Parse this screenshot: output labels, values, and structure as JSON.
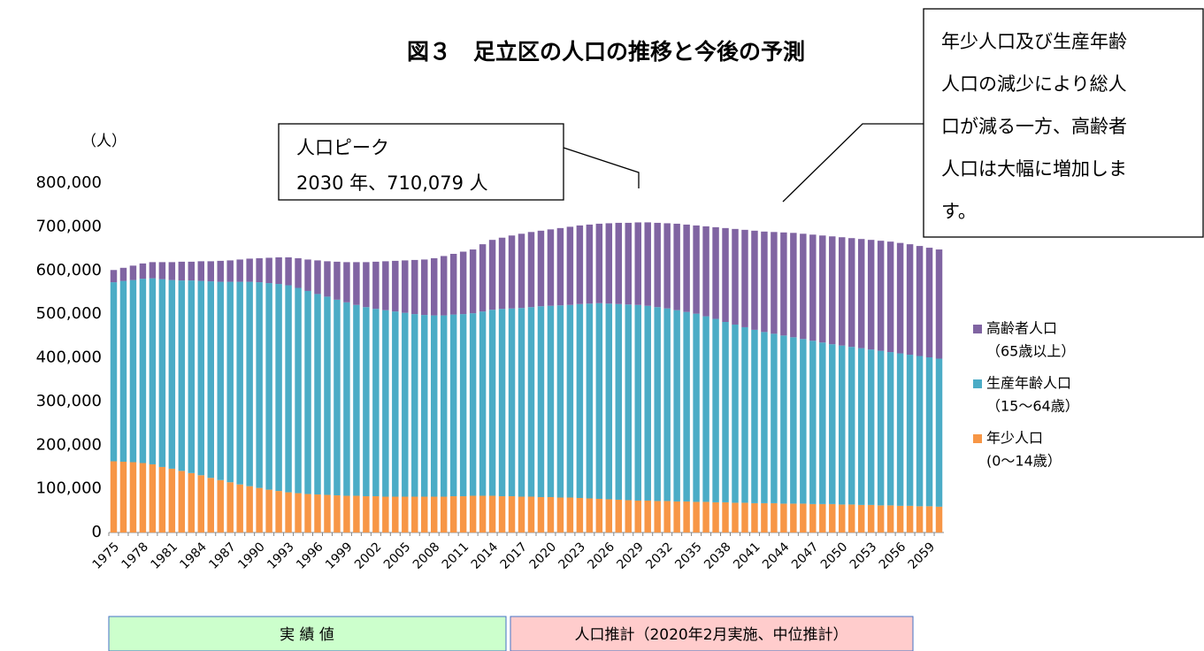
{
  "chart_data": {
    "type": "stacked_bar",
    "title": "図３　足立区の人口の推移と今後の予測",
    "y_unit": "（人）",
    "categories": [
      "1975",
      null,
      null,
      "1978",
      null,
      null,
      "1981",
      null,
      null,
      "1984",
      null,
      null,
      "1987",
      null,
      null,
      "1990",
      null,
      null,
      "1993",
      null,
      null,
      "1996",
      null,
      null,
      "1999",
      null,
      null,
      "2002",
      null,
      null,
      "2005",
      null,
      null,
      "2008",
      null,
      null,
      "2011",
      null,
      null,
      "2014",
      null,
      null,
      "2017",
      null,
      null,
      "2020",
      null,
      null,
      "2023",
      null,
      null,
      "2026",
      null,
      null,
      "2029",
      null,
      null,
      "2032",
      null,
      null,
      "2035",
      null,
      null,
      "2038",
      null,
      null,
      "2041",
      null,
      null,
      "2044",
      null,
      null,
      "2047",
      null,
      null,
      "2050",
      null,
      null,
      "2053",
      null,
      null,
      "2056",
      null,
      null,
      "2059",
      null
    ],
    "series": [
      {
        "name": "年少人口",
        "age_range": "(0～14歳）",
        "color": "#f79646",
        "values": [
          163000,
          162000,
          161000,
          159000,
          156000,
          150000,
          146000,
          141000,
          136000,
          131000,
          125000,
          120000,
          115000,
          110000,
          106000,
          102000,
          98000,
          95000,
          92000,
          90000,
          88000,
          87000,
          86000,
          85000,
          84000,
          84000,
          83000,
          83000,
          82000,
          82000,
          82000,
          82000,
          82000,
          82000,
          82000,
          83000,
          83000,
          84000,
          84000,
          84000,
          83000,
          83000,
          82000,
          82000,
          81000,
          81000,
          80000,
          80000,
          79000,
          78000,
          77000,
          76000,
          75000,
          74000,
          73000,
          73000,
          72000,
          72000,
          71000,
          71000,
          70000,
          70000,
          69000,
          69000,
          68000,
          68000,
          67000,
          67000,
          67000,
          66000,
          66000,
          66000,
          65000,
          65000,
          65000,
          64000,
          64000,
          63000,
          63000,
          62000,
          62000,
          61000,
          61000,
          60000,
          60000,
          59000
        ]
      },
      {
        "name": "生産年齢人口",
        "age_range": "（15～64歳）",
        "color": "#4bacc6",
        "values": [
          410000,
          414000,
          417000,
          422000,
          426000,
          430000,
          432000,
          436000,
          441000,
          445000,
          450000,
          454000,
          459000,
          464000,
          468000,
          471000,
          473000,
          474000,
          474000,
          470000,
          465000,
          459000,
          454000,
          448000,
          443000,
          437000,
          433000,
          429000,
          427000,
          424000,
          421000,
          418000,
          416000,
          415000,
          415000,
          416000,
          417000,
          418000,
          422000,
          426000,
          429000,
          430000,
          432000,
          434000,
          437000,
          438000,
          440000,
          441000,
          444000,
          446000,
          448000,
          448000,
          448000,
          448000,
          448000,
          446000,
          444000,
          441000,
          438000,
          434000,
          431000,
          425000,
          420000,
          413000,
          408000,
          402000,
          397000,
          392000,
          388000,
          385000,
          381000,
          377000,
          374000,
          370000,
          366000,
          364000,
          361000,
          359000,
          356000,
          354000,
          351000,
          349000,
          346000,
          344000,
          341000,
          339000
        ]
      },
      {
        "name": "高齢者人口",
        "age_range": "（65歳以上）",
        "color": "#8064a2",
        "values": [
          28000,
          30000,
          33000,
          35000,
          37000,
          39000,
          41000,
          43000,
          43000,
          45000,
          46000,
          48000,
          49000,
          51000,
          53000,
          55000,
          58000,
          61000,
          64000,
          68000,
          72000,
          77000,
          81000,
          87000,
          92000,
          98000,
          103000,
          108000,
          112000,
          116000,
          120000,
          124000,
          127000,
          131000,
          136000,
          139000,
          143000,
          146000,
          154000,
          160000,
          163000,
          167000,
          170000,
          172000,
          173000,
          175000,
          177000,
          179000,
          180000,
          181000,
          182000,
          184000,
          186000,
          187000,
          189000,
          191079,
          193000,
          195000,
          198000,
          200000,
          202000,
          206000,
          210000,
          215000,
          219000,
          223000,
          227000,
          230000,
          233000,
          236000,
          239000,
          241000,
          243000,
          245000,
          247000,
          248000,
          249000,
          250000,
          251000,
          252000,
          253000,
          253000,
          253000,
          252000,
          251000,
          250000
        ]
      }
    ],
    "ylim": [
      0,
      800000
    ],
    "yticks": [
      0,
      {
        "value": 100000,
        "label": "100,000"
      },
      {
        "value": 200000,
        "label": "200,000"
      },
      {
        "value": 300000,
        "label": "300,000"
      },
      {
        "value": 400000,
        "label": "400,000"
      },
      {
        "value": 500000,
        "label": "500,000"
      },
      {
        "value": 600000,
        "label": "600,000"
      },
      {
        "value": 700000,
        "label": "700,000"
      },
      {
        "value": 800000,
        "label": "800,000"
      }
    ],
    "grid": false,
    "legend": "right",
    "annotations": [
      {
        "lines": [
          "人口ピーク",
          "2030 年、710,079 人"
        ]
      },
      {
        "lines": [
          "年少人口及び生産年齢",
          "人口の減少により総人",
          "口が減る一方、高齢者",
          "人口は大幅に増加しま",
          "す。"
        ]
      }
    ],
    "periods": [
      "実 績 値",
      "人口推計（2020年2月実施、中位推計）"
    ]
  }
}
